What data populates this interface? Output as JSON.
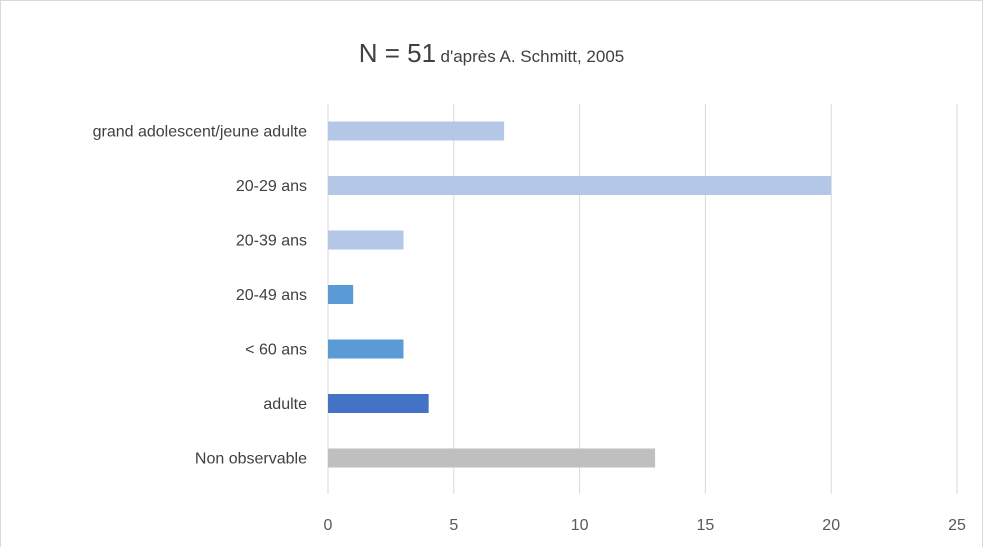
{
  "title": {
    "main": "N = 51",
    "sub": "d'après A. Schmitt, 2005"
  },
  "chart_data": {
    "type": "bar",
    "orientation": "horizontal",
    "title": "N = 51 d'après A. Schmitt, 2005",
    "xlabel": "",
    "ylabel": "",
    "categories": [
      "grand adolescent/jeune adulte",
      "20-29 ans",
      "20-39 ans",
      "20-49 ans",
      "< 60 ans",
      "adulte",
      "Non observable"
    ],
    "values": [
      7,
      20,
      3,
      1,
      3,
      4,
      13
    ],
    "bar_colors": [
      "#b4c7e7",
      "#b4c7e7",
      "#b4c7e7",
      "#5b9bd5",
      "#5b9bd5",
      "#4472c4",
      "#bfbfbf"
    ],
    "xlim": [
      0,
      25
    ],
    "xticks": [
      0,
      5,
      10,
      15,
      20,
      25
    ],
    "grid": true,
    "legend": "none"
  }
}
